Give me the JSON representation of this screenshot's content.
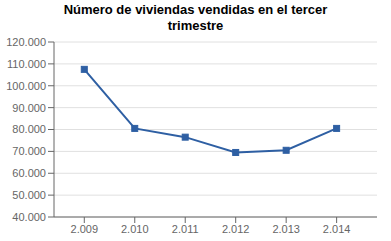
{
  "chart_data": {
    "type": "line",
    "title": "Número de viviendas vendidas en el tercer\ntrimestre",
    "x": [
      2009,
      2010,
      2011,
      2012,
      2013,
      2014
    ],
    "values": [
      107500,
      80500,
      76500,
      69500,
      70500,
      80500
    ],
    "color": "#2E5FA3",
    "marker": "square",
    "xlim": [
      2008.4,
      2014.8
    ],
    "xticks": [
      {
        "value": 2009,
        "label": "2.009"
      },
      {
        "value": 2010,
        "label": "2.010"
      },
      {
        "value": 2011,
        "label": "2.011"
      },
      {
        "value": 2012,
        "label": "2.012"
      },
      {
        "value": 2013,
        "label": "2.013"
      },
      {
        "value": 2014,
        "label": "2.014"
      }
    ],
    "ylim": [
      40000,
      120000
    ],
    "yticks": [
      {
        "value": 40000,
        "label": "40.000"
      },
      {
        "value": 50000,
        "label": "50.000"
      },
      {
        "value": 60000,
        "label": "60.000"
      },
      {
        "value": 70000,
        "label": "70.000"
      },
      {
        "value": 80000,
        "label": "80.000"
      },
      {
        "value": 90000,
        "label": "90.000"
      },
      {
        "value": 100000,
        "label": "100.000"
      },
      {
        "value": 110000,
        "label": "110.000"
      },
      {
        "value": 120000,
        "label": "120.000"
      }
    ],
    "grid": true
  }
}
